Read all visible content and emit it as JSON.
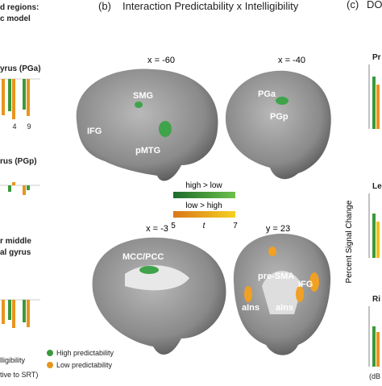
{
  "left_panel": {
    "title_lines": [
      "d regions:",
      "c model"
    ],
    "region_titles": [
      "yrus (PGa)",
      "rus (PGp)",
      "r middle",
      "al gyrus"
    ],
    "ticks": [
      "4",
      "9"
    ],
    "x_label_lines": [
      "lligibility",
      "tive to SRT)"
    ],
    "legend": [
      "High predictability",
      "Low predictability"
    ]
  },
  "center_panel": {
    "letter": "(b)",
    "title": "Interaction Predictability x Intelligibility",
    "slices": [
      "x = -60",
      "x = -40",
      "x = -3",
      "y = 23"
    ],
    "regions": [
      "SMG",
      "IFG",
      "pMTG",
      "PGa",
      "PGp",
      "MCC/PCC",
      "pre-SMA",
      "IFG",
      "aIns",
      "aIns"
    ],
    "colorbar": {
      "positive": "high > low",
      "negative": "low > high",
      "min": 5,
      "label": "t",
      "max": 7
    }
  },
  "right_panel": {
    "letter": "(c)",
    "title": "DO",
    "y_label": "Percent Signal Change",
    "region_titles": [
      "Pr",
      "Le",
      "Ri"
    ],
    "x_label": "(dB"
  }
}
